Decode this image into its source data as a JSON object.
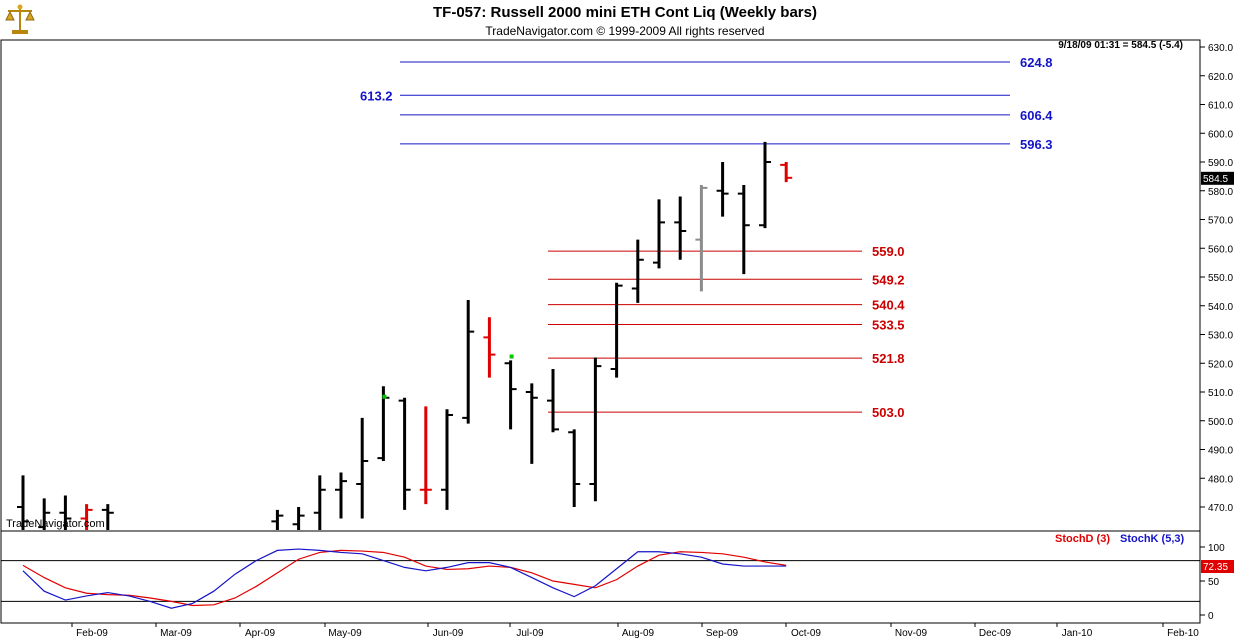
{
  "header": {
    "title": "TF-057:  Russell 2000 mini ETH Cont Liq  (Weekly bars)",
    "copyright": "TradeNavigator.com © 1999-2009 All rights reserved",
    "info": "9/18/09 01:31 = 584.5 (-5.4)",
    "watermark": "TradeNavigator.com",
    "logo_icon": "scales-logo-icon"
  },
  "colors": {
    "fib_blue": "#1414c8",
    "fib_red": "#cc0000",
    "bar_black": "#000000",
    "bar_red": "#e00000",
    "bar_gray": "#8c8c8c",
    "bar_green": "#00c800",
    "stoch_d": "#e00000",
    "stoch_k": "#1414c8"
  },
  "chart_data": [
    {
      "type": "ohlc",
      "title": "TF-057:  Russell 2000 mini ETH Cont Liq  (Weekly bars)",
      "ylim": [
        460,
        633
      ],
      "yticks": [
        470,
        480,
        490,
        500,
        510,
        520,
        530,
        540,
        550,
        560,
        570,
        580,
        590,
        600,
        610,
        620,
        630
      ],
      "ytick_labels": [
        "470.0",
        "480.0",
        "490.0",
        "500.0",
        "510.0",
        "520.0",
        "530.0",
        "540.0",
        "550.0",
        "560.0",
        "570.0",
        "580.0",
        "590.0",
        "600.0",
        "610.0",
        "620.0",
        "630.0"
      ],
      "last_price_label": "584.5",
      "last_price": 584.5,
      "x_tick_labels": [
        "Feb-09",
        "Mar-09",
        "Apr-09",
        "May-09",
        "Jun-09",
        "Jul-09",
        "Aug-09",
        "Sep-09",
        "Oct-09",
        "Nov-09",
        "Dec-09",
        "Jan-10",
        "Feb-10"
      ],
      "bars": [
        {
          "week": 0,
          "o": 470,
          "h": 481,
          "l": 460,
          "c": 465,
          "color": "black"
        },
        {
          "week": 1,
          "o": 463,
          "h": 473,
          "l": 460,
          "c": 468,
          "color": "black"
        },
        {
          "week": 2,
          "o": 468,
          "h": 474,
          "l": 460,
          "c": 466,
          "color": "black"
        },
        {
          "week": 3,
          "o": 466,
          "h": 471,
          "l": 460,
          "c": 469,
          "color": "red"
        },
        {
          "week": 4,
          "o": 469,
          "h": 471,
          "l": 460,
          "c": 468,
          "color": "black"
        },
        {
          "week": 12,
          "o": 465,
          "h": 469,
          "l": 460,
          "c": 467,
          "color": "black"
        },
        {
          "week": 13,
          "o": 464,
          "h": 470,
          "l": 460,
          "c": 467,
          "color": "black"
        },
        {
          "week": 14,
          "o": 468,
          "h": 481,
          "l": 462,
          "c": 476,
          "color": "black"
        },
        {
          "week": 15,
          "o": 476,
          "h": 482,
          "l": 466,
          "c": 479,
          "color": "black"
        },
        {
          "week": 16,
          "o": 478,
          "h": 501,
          "l": 466,
          "c": 486,
          "color": "black"
        },
        {
          "week": 17,
          "o": 487,
          "h": 512,
          "l": 486,
          "c": 508,
          "color": "black"
        },
        {
          "week": 18,
          "o": 507,
          "h": 508,
          "l": 469,
          "c": 476,
          "color": "black"
        },
        {
          "week": 19,
          "o": 476,
          "h": 505,
          "l": 471,
          "c": 476,
          "color": "red"
        },
        {
          "week": 20,
          "o": 476,
          "h": 504,
          "l": 469,
          "c": 502,
          "color": "black"
        },
        {
          "week": 21,
          "o": 501,
          "h": 542,
          "l": 499,
          "c": 531,
          "color": "black"
        },
        {
          "week": 22,
          "o": 529,
          "h": 536,
          "l": 515,
          "c": 523,
          "color": "red"
        },
        {
          "week": 23,
          "o": 520,
          "h": 521,
          "l": 497,
          "c": 511,
          "color": "black"
        },
        {
          "week": 24,
          "o": 510,
          "h": 513,
          "l": 485,
          "c": 508,
          "color": "black"
        },
        {
          "week": 25,
          "o": 507,
          "h": 518,
          "l": 496,
          "c": 497,
          "color": "black"
        },
        {
          "week": 26,
          "o": 496,
          "h": 497,
          "l": 470,
          "c": 478,
          "color": "black"
        },
        {
          "week": 27,
          "o": 478,
          "h": 522,
          "l": 472,
          "c": 519,
          "color": "black"
        },
        {
          "week": 28,
          "o": 518,
          "h": 548,
          "l": 515,
          "c": 547,
          "color": "black"
        },
        {
          "week": 29,
          "o": 546,
          "h": 563,
          "l": 541,
          "c": 556,
          "color": "black"
        },
        {
          "week": 30,
          "o": 555,
          "h": 577,
          "l": 553,
          "c": 569,
          "color": "black"
        },
        {
          "week": 31,
          "o": 569,
          "h": 578,
          "l": 556,
          "c": 566,
          "color": "black"
        },
        {
          "week": 32,
          "o": 563,
          "h": 582,
          "l": 545,
          "c": 581,
          "color": "gray"
        },
        {
          "week": 33,
          "o": 580,
          "h": 590,
          "l": 571,
          "c": 579,
          "color": "black"
        },
        {
          "week": 34,
          "o": 579,
          "h": 582,
          "l": 551,
          "c": 568,
          "color": "black"
        },
        {
          "week": 35,
          "o": 568,
          "h": 597,
          "l": 567,
          "c": 590,
          "color": "black"
        },
        {
          "week": 36,
          "o": 589,
          "h": 590,
          "l": 583,
          "c": 584.5,
          "color": "red"
        }
      ],
      "green_marks": [
        {
          "week": 17,
          "price": 508
        },
        {
          "week": 23,
          "price": 522
        }
      ],
      "fib_levels_blue": [
        {
          "value": 624.8,
          "label": "624.8"
        },
        {
          "value": 613.2,
          "label": "613.2"
        },
        {
          "value": 606.4,
          "label": "606.4"
        },
        {
          "value": 596.3,
          "label": "596.3"
        }
      ],
      "fib_levels_red": [
        {
          "value": 559.0,
          "label": "559.0"
        },
        {
          "value": 549.2,
          "label": "549.2"
        },
        {
          "value": 540.4,
          "label": "540.4"
        },
        {
          "value": 533.5,
          "label": "533.5"
        },
        {
          "value": 521.8,
          "label": "521.8"
        },
        {
          "value": 503.0,
          "label": "503.0"
        }
      ]
    },
    {
      "type": "line",
      "ylim": [
        -10,
        120
      ],
      "yticks": [
        0,
        50,
        100
      ],
      "ytick_labels": [
        "0",
        "50",
        "100"
      ],
      "reference_lines": [
        20,
        80
      ],
      "last_value_label": "72.35",
      "legend": [
        "StochD (3)",
        "StochK (5,3)"
      ],
      "legend_position": "top-right",
      "series": [
        {
          "name": "StochD (3)",
          "color": "red",
          "x": [
            0,
            1,
            2,
            3,
            4,
            5,
            6,
            7,
            8,
            9,
            10,
            11,
            12,
            13,
            14,
            15,
            16,
            17,
            18,
            19,
            20,
            21,
            22,
            23,
            24,
            25,
            26,
            27,
            28,
            29,
            30,
            31,
            32,
            33,
            34,
            35,
            36
          ],
          "values": [
            73,
            55,
            40,
            32,
            30,
            29,
            25,
            20,
            14,
            15,
            25,
            42,
            62,
            82,
            92,
            95,
            94,
            92,
            85,
            72,
            67,
            68,
            72,
            70,
            62,
            50,
            45,
            40,
            52,
            72,
            88,
            93,
            92,
            90,
            85,
            78,
            73
          ]
        },
        {
          "name": "StochK (5,3)",
          "color": "blue",
          "x": [
            0,
            1,
            2,
            3,
            4,
            5,
            6,
            7,
            8,
            9,
            10,
            11,
            12,
            13,
            14,
            15,
            16,
            17,
            18,
            19,
            20,
            21,
            22,
            23,
            24,
            25,
            26,
            27,
            28,
            29,
            30,
            31,
            32,
            33,
            34,
            35,
            36
          ],
          "values": [
            65,
            35,
            22,
            28,
            33,
            28,
            20,
            10,
            17,
            35,
            60,
            80,
            95,
            97,
            95,
            92,
            90,
            80,
            70,
            65,
            70,
            77,
            77,
            70,
            55,
            40,
            27,
            43,
            68,
            93,
            93,
            90,
            85,
            75,
            72,
            72,
            72
          ]
        }
      ]
    }
  ]
}
